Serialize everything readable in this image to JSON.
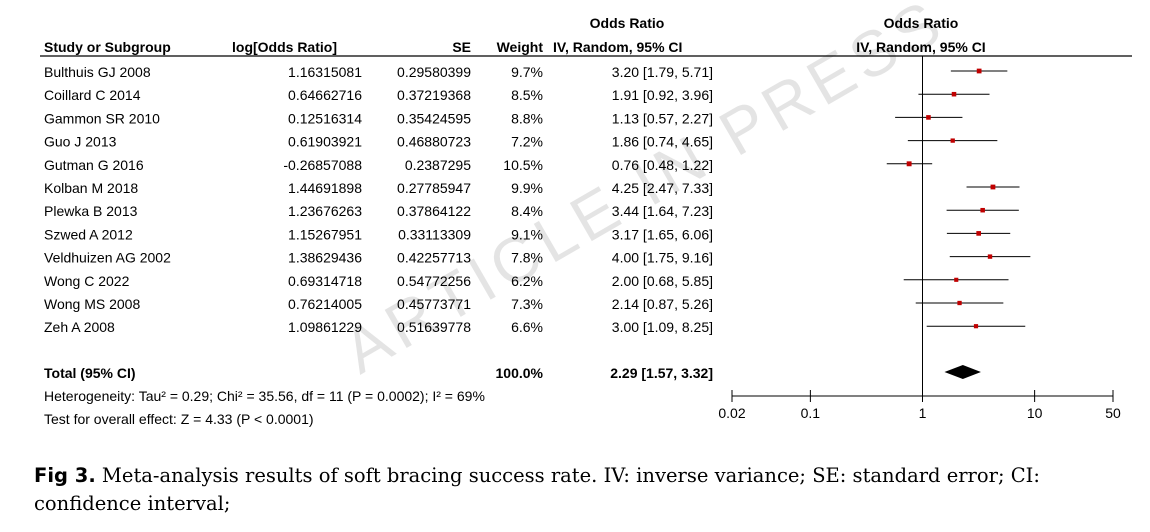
{
  "header": {
    "group_left": "Odds Ratio",
    "group_right": "Odds Ratio",
    "col_study": "Study or Subgroup",
    "col_log": "log[Odds Ratio]",
    "col_se": "SE",
    "col_weight": "Weight",
    "col_ci": "IV, Random, 95% CI",
    "plot_method": "IV, Random, 95% CI"
  },
  "studies": [
    {
      "name": "Bulthuis GJ 2008",
      "log": "1.16315081",
      "se": "0.29580399",
      "weight": "9.7%",
      "ci": "3.20 [1.79, 5.71]"
    },
    {
      "name": "Coillard C 2014",
      "log": "0.64662716",
      "se": "0.37219368",
      "weight": "8.5%",
      "ci": "1.91 [0.92, 3.96]"
    },
    {
      "name": "Gammon SR 2010",
      "log": "0.12516314",
      "se": "0.35424595",
      "weight": "8.8%",
      "ci": "1.13 [0.57, 2.27]"
    },
    {
      "name": "Guo J 2013",
      "log": "0.61903921",
      "se": "0.46880723",
      "weight": "7.2%",
      "ci": "1.86 [0.74, 4.65]"
    },
    {
      "name": "Gutman G 2016",
      "log": "-0.26857088",
      "se": "0.2387295",
      "weight": "10.5%",
      "ci": "0.76 [0.48, 1.22]"
    },
    {
      "name": "Kolban M 2018",
      "log": "1.44691898",
      "se": "0.27785947",
      "weight": "9.9%",
      "ci": "4.25 [2.47, 7.33]"
    },
    {
      "name": "Plewka B 2013",
      "log": "1.23676263",
      "se": "0.37864122",
      "weight": "8.4%",
      "ci": "3.44 [1.64, 7.23]"
    },
    {
      "name": "Szwed A 2012",
      "log": "1.15267951",
      "se": "0.33113309",
      "weight": "9.1%",
      "ci": "3.17 [1.65, 6.06]"
    },
    {
      "name": "Veldhuizen AG 2002",
      "log": "1.38629436",
      "se": "0.42257713",
      "weight": "7.8%",
      "ci": "4.00 [1.75, 9.16]"
    },
    {
      "name": "Wong C 2022",
      "log": "0.69314718",
      "se": "0.54772256",
      "weight": "6.2%",
      "ci": "2.00 [0.68, 5.85]"
    },
    {
      "name": "Wong MS 2008",
      "log": "0.76214005",
      "se": "0.45773771",
      "weight": "7.3%",
      "ci": "2.14 [0.87, 5.26]"
    },
    {
      "name": "Zeh A 2008",
      "log": "1.09861229",
      "se": "0.51639778",
      "weight": "6.6%",
      "ci": "3.00 [1.09, 8.25]"
    }
  ],
  "total": {
    "label": "Total (95% CI)",
    "weight": "100.0%",
    "ci": "2.29 [1.57, 3.32]"
  },
  "heterogeneity": "Heterogeneity: Tau² = 0.29; Chi² = 35.56, df = 11 (P = 0.0002); I² = 69%",
  "overall_effect": "Test for overall effect: Z = 4.33 (P < 0.0001)",
  "axis_ticks": [
    "0.02",
    "0.1",
    "1",
    "10",
    "50"
  ],
  "watermark": "ARTICLE IN PRESS",
  "caption": {
    "label": "Fig 3.",
    "text": " Meta-analysis results of soft bracing success rate. IV: inverse variance; SE: standard error; CI: confidence interval;"
  },
  "colors": {
    "marker": "#c00000",
    "diamond": "#000000",
    "line": "#000000"
  },
  "chart_data": {
    "type": "forest",
    "scale": "log",
    "xlim": [
      0.02,
      50
    ],
    "null_line": 1,
    "x_ticks": [
      0.02,
      0.1,
      1,
      10,
      50
    ],
    "studies": [
      {
        "name": "Bulthuis GJ 2008",
        "or": 3.2,
        "lo": 1.79,
        "hi": 5.71,
        "weight": 9.7
      },
      {
        "name": "Coillard C 2014",
        "or": 1.91,
        "lo": 0.92,
        "hi": 3.96,
        "weight": 8.5
      },
      {
        "name": "Gammon SR 2010",
        "or": 1.13,
        "lo": 0.57,
        "hi": 2.27,
        "weight": 8.8
      },
      {
        "name": "Guo J 2013",
        "or": 1.86,
        "lo": 0.74,
        "hi": 4.65,
        "weight": 7.2
      },
      {
        "name": "Gutman G 2016",
        "or": 0.76,
        "lo": 0.48,
        "hi": 1.22,
        "weight": 10.5
      },
      {
        "name": "Kolban M 2018",
        "or": 4.25,
        "lo": 2.47,
        "hi": 7.33,
        "weight": 9.9
      },
      {
        "name": "Plewka B 2013",
        "or": 3.44,
        "lo": 1.64,
        "hi": 7.23,
        "weight": 8.4
      },
      {
        "name": "Szwed A 2012",
        "or": 3.17,
        "lo": 1.65,
        "hi": 6.06,
        "weight": 9.1
      },
      {
        "name": "Veldhuizen AG 2002",
        "or": 4.0,
        "lo": 1.75,
        "hi": 9.16,
        "weight": 7.8
      },
      {
        "name": "Wong C 2022",
        "or": 2.0,
        "lo": 0.68,
        "hi": 5.85,
        "weight": 6.2
      },
      {
        "name": "Wong MS 2008",
        "or": 2.14,
        "lo": 0.87,
        "hi": 5.26,
        "weight": 7.3
      },
      {
        "name": "Zeh A 2008",
        "or": 3.0,
        "lo": 1.09,
        "hi": 8.25,
        "weight": 6.6
      }
    ],
    "pooled": {
      "or": 2.29,
      "lo": 1.57,
      "hi": 3.32
    }
  }
}
